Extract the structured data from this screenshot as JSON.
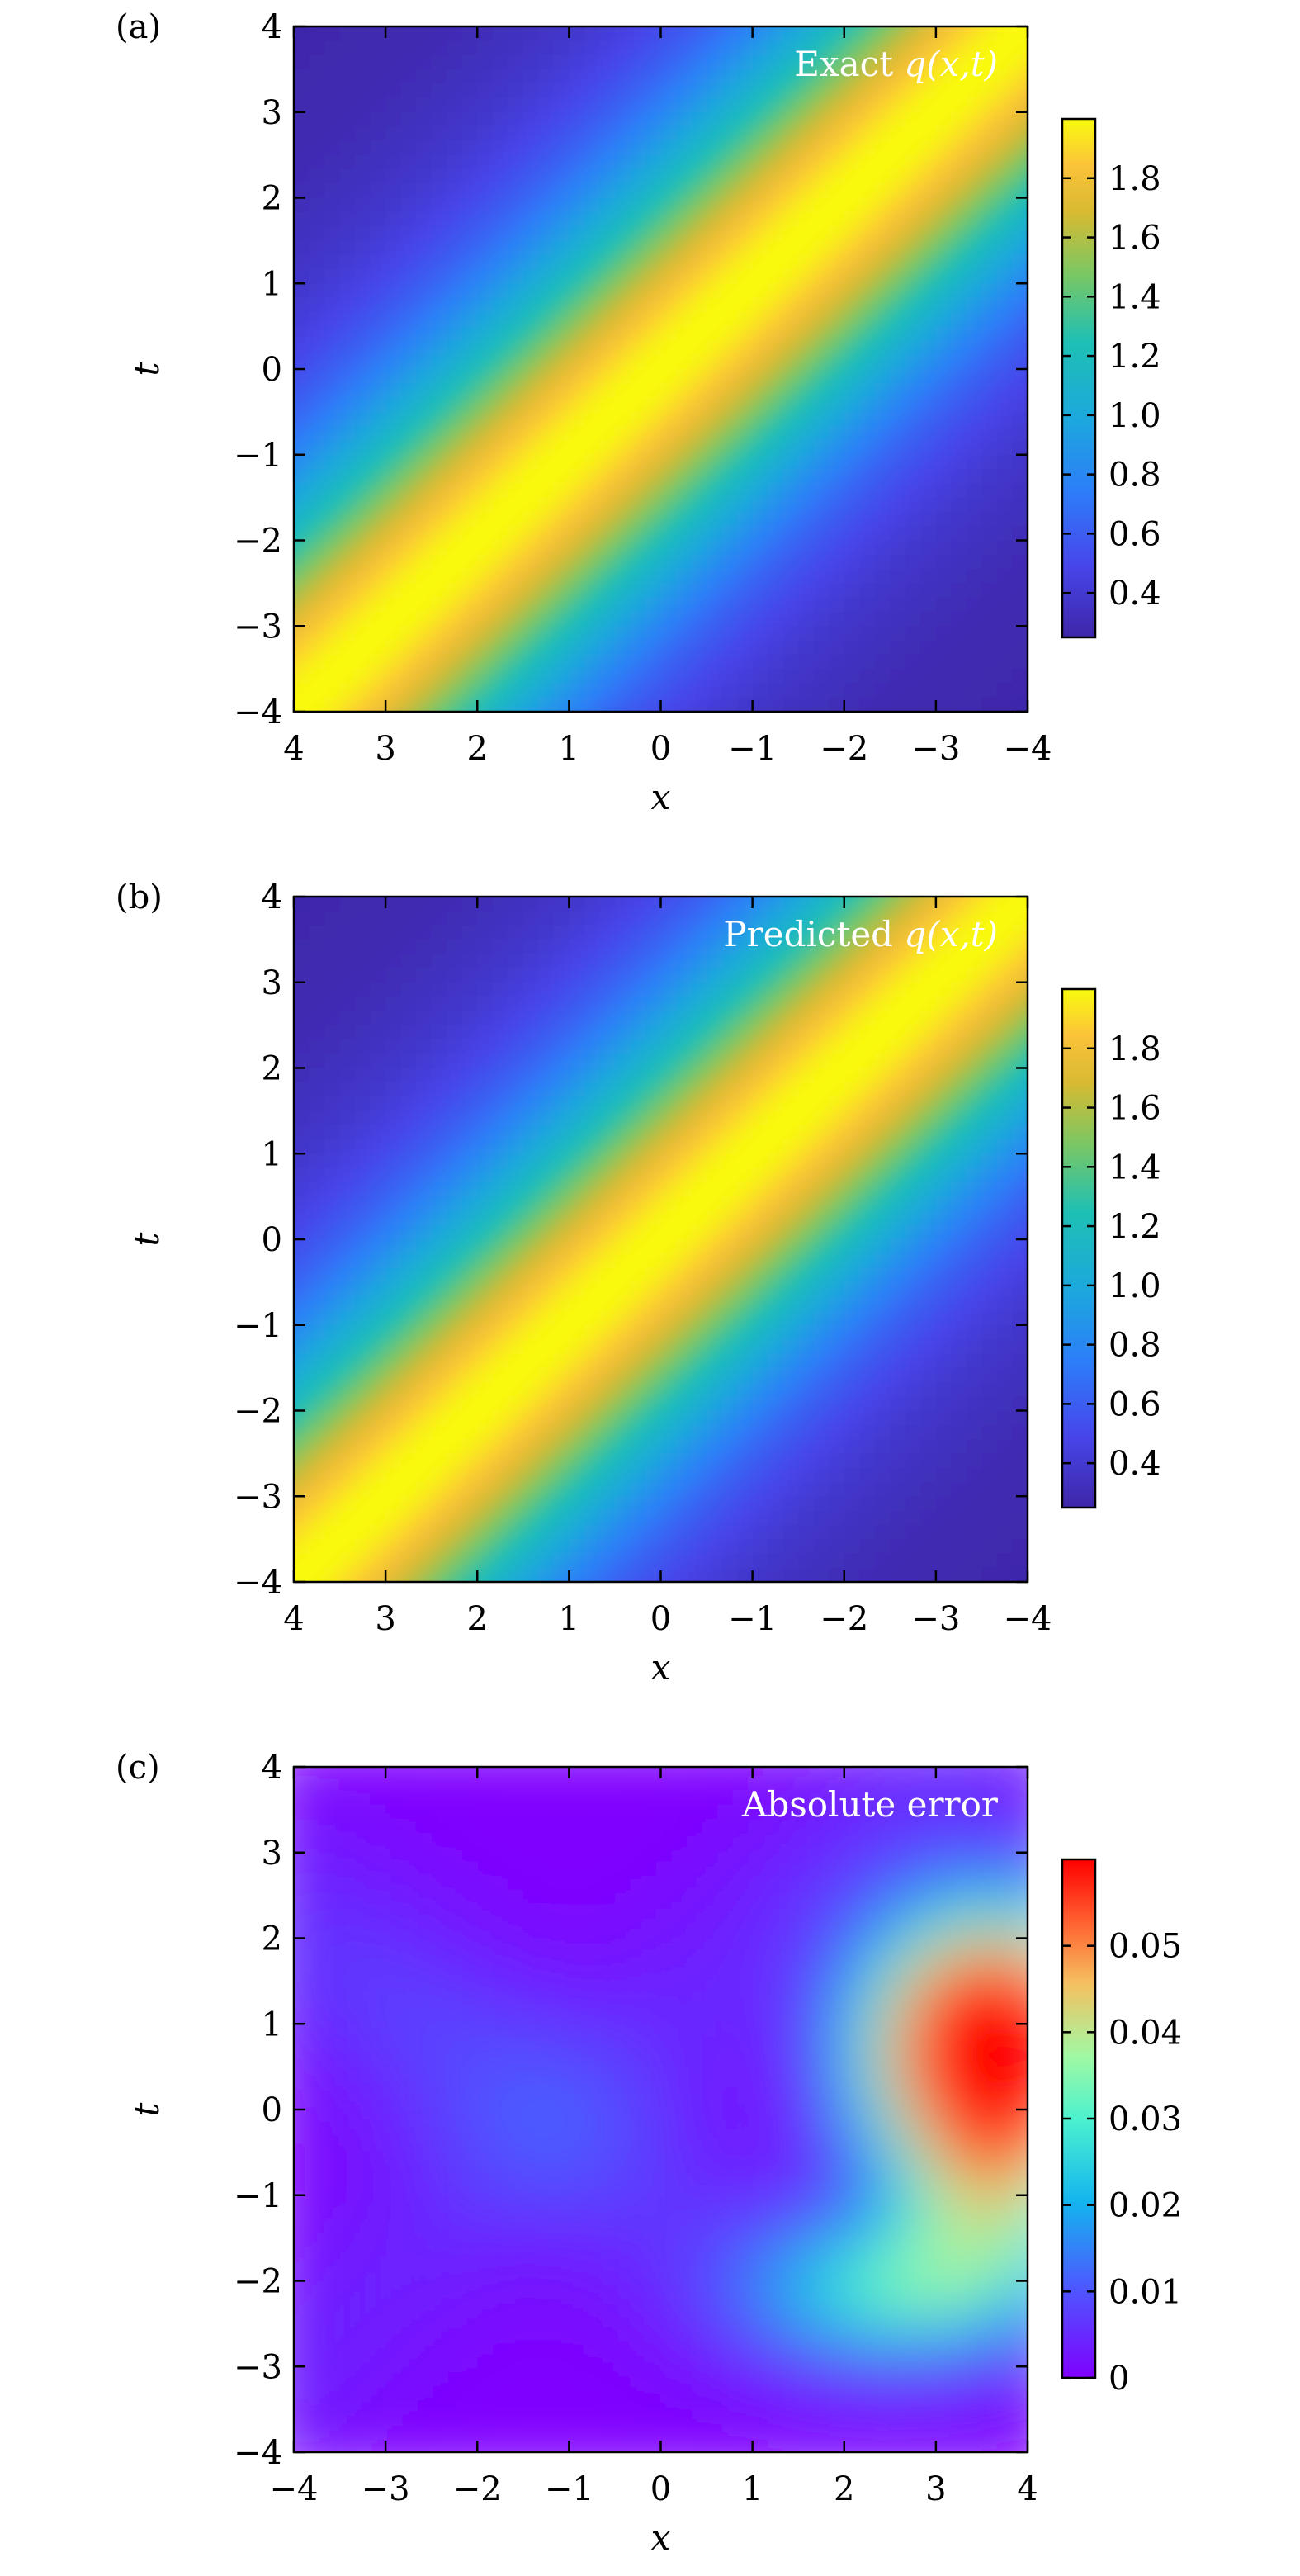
{
  "chart_data": [
    {
      "type": "heatmap",
      "panel_label": "(a)",
      "title_prefix": "Exact ",
      "title_math": "q(x,t)",
      "xlabel": "x",
      "ylabel": "t",
      "xlim": [
        4,
        -4
      ],
      "ylim": [
        -4,
        4
      ],
      "x_ticks": [
        "4",
        "3",
        "2",
        "1",
        "0",
        "−1",
        "−2",
        "−3",
        "−4"
      ],
      "y_ticks": [
        "4",
        "3",
        "2",
        "1",
        "0",
        "−1",
        "−2",
        "−3",
        "−4"
      ],
      "colorbar_ticks": [
        "1.8",
        "1.6",
        "1.4",
        "1.2",
        "1.0",
        "0.8",
        "0.6",
        "0.4"
      ],
      "colorbar_range": [
        0.25,
        2.0
      ],
      "colormap": "parula",
      "grid": false
    },
    {
      "type": "heatmap",
      "panel_label": "(b)",
      "title_prefix": "Predicted ",
      "title_math": "q(x,t)",
      "xlabel": "x",
      "ylabel": "t",
      "xlim": [
        4,
        -4
      ],
      "ylim": [
        -4,
        4
      ],
      "x_ticks": [
        "4",
        "3",
        "2",
        "1",
        "0",
        "−1",
        "−2",
        "−3",
        "−4"
      ],
      "y_ticks": [
        "4",
        "3",
        "2",
        "1",
        "0",
        "−1",
        "−2",
        "−3",
        "−4"
      ],
      "colorbar_ticks": [
        "1.8",
        "1.6",
        "1.4",
        "1.2",
        "1.0",
        "0.8",
        "0.6",
        "0.4"
      ],
      "colorbar_range": [
        0.25,
        2.0
      ],
      "colormap": "parula",
      "grid": false
    },
    {
      "type": "heatmap",
      "panel_label": "(c)",
      "title_prefix": "Absolute error",
      "title_math": "",
      "xlabel": "x",
      "ylabel": "t",
      "xlim": [
        -4,
        4
      ],
      "ylim": [
        -4,
        4
      ],
      "x_ticks": [
        "−4",
        "−3",
        "−2",
        "−1",
        "0",
        "1",
        "2",
        "3",
        "4"
      ],
      "y_ticks": [
        "4",
        "3",
        "2",
        "1",
        "0",
        "−1",
        "−2",
        "−3",
        "−4"
      ],
      "colorbar_ticks": [
        "0.05",
        "0.04",
        "0.03",
        "0.02",
        "0.01",
        "0"
      ],
      "colorbar_range": [
        0,
        0.06
      ],
      "colormap": "rainbow",
      "grid": false
    }
  ],
  "colors": {
    "parula_low": "#3e2c9a",
    "parula_mid": "#2bb6c6",
    "parula_high": "#f9fb0e",
    "rainbow_low": "#8000ff",
    "rainbow_high": "#ff0000",
    "title_text": "#ffffff"
  }
}
